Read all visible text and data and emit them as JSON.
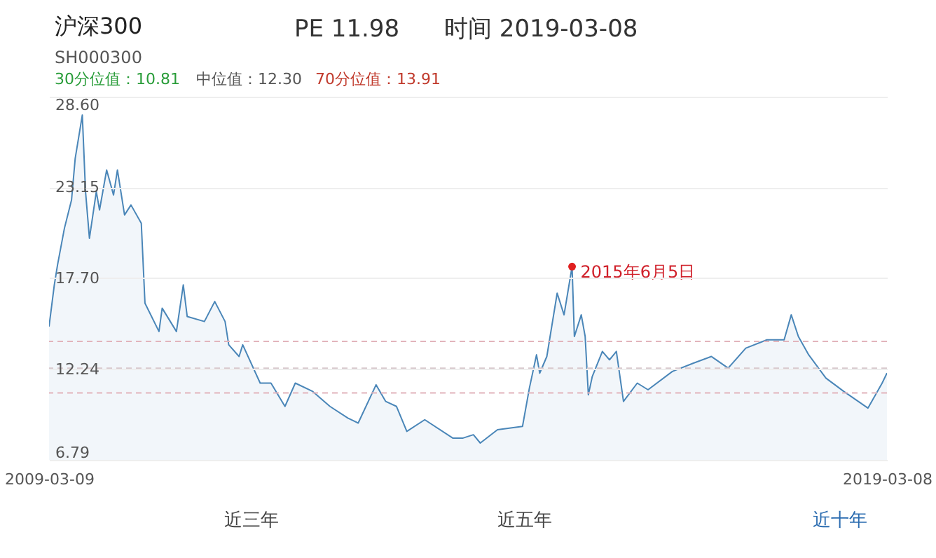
{
  "chart_data": {
    "type": "area",
    "title": "沪深300",
    "subtitle": "SH000300",
    "x": [
      "2009-03-09",
      "2009-04-01",
      "2009-04-15",
      "2009-05-15",
      "2009-06-15",
      "2009-07-01",
      "2009-08-01",
      "2009-08-15",
      "2009-09-01",
      "2009-10-01",
      "2009-10-15",
      "2009-11-15",
      "2009-12-15",
      "2010-01-01",
      "2010-02-01",
      "2010-03-01",
      "2010-04-15",
      "2010-05-01",
      "2010-07-01",
      "2010-07-15",
      "2010-09-15",
      "2010-10-15",
      "2010-11-01",
      "2011-01-15",
      "2011-03-01",
      "2011-04-15",
      "2011-05-01",
      "2011-06-15",
      "2011-07-01",
      "2011-09-15",
      "2011-11-01",
      "2012-01-01",
      "2012-02-15",
      "2012-05-01",
      "2012-07-15",
      "2012-10-01",
      "2012-11-15",
      "2013-02-01",
      "2013-03-15",
      "2013-05-01",
      "2013-06-15",
      "2013-09-01",
      "2014-01-01",
      "2014-02-15",
      "2014-04-01",
      "2014-05-01",
      "2014-07-15",
      "2014-11-01",
      "2014-12-01",
      "2015-01-01",
      "2015-01-15",
      "2015-02-15",
      "2015-04-01",
      "2015-05-01",
      "2015-06-05",
      "2015-06-15",
      "2015-07-15",
      "2015-08-01",
      "2015-08-15",
      "2015-09-01",
      "2015-10-15",
      "2015-11-15",
      "2015-12-15",
      "2016-01-15",
      "2016-03-15",
      "2016-05-01",
      "2016-08-15",
      "2016-11-15",
      "2017-02-01",
      "2017-04-15",
      "2017-07-01",
      "2017-10-01",
      "2017-12-15",
      "2018-01-15",
      "2018-02-15",
      "2018-04-01",
      "2018-06-15",
      "2018-09-01",
      "2018-12-15",
      "2019-02-15",
      "2019-03-08"
    ],
    "series": [
      {
        "color": "#4a86b8",
        "values": [
          14.8,
          17.3,
          18.5,
          20.7,
          22.4,
          24.9,
          27.5,
          22.9,
          20.1,
          22.9,
          21.8,
          24.2,
          22.7,
          24.2,
          21.5,
          22.1,
          21.0,
          16.2,
          14.5,
          15.9,
          14.5,
          17.3,
          15.4,
          15.1,
          16.3,
          15.1,
          13.7,
          13.0,
          13.7,
          11.4,
          11.4,
          10.0,
          11.4,
          10.9,
          10.0,
          9.3,
          9.0,
          11.3,
          10.3,
          10.0,
          8.5,
          9.2,
          8.1,
          8.1,
          8.3,
          7.8,
          8.6,
          8.8,
          11.1,
          13.1,
          12.0,
          13.0,
          16.8,
          15.5,
          18.4,
          14.2,
          15.5,
          14.2,
          10.7,
          11.8,
          13.3,
          12.8,
          13.3,
          10.3,
          11.4,
          11.0,
          12.1,
          12.6,
          13.0,
          12.3,
          13.5,
          14.0,
          14.0,
          15.5,
          14.2,
          13.1,
          11.7,
          10.9,
          9.9,
          11.4,
          12.0
        ]
      }
    ],
    "xlim": [
      "2009-03-09",
      "2019-03-08"
    ],
    "xticks": [
      "2009-03-09",
      "2019-03-08"
    ],
    "ylim": [
      6.79,
      28.6
    ],
    "yticks": [
      6.79,
      12.24,
      {
        "value": 17.7,
        "label": "17.70"
      },
      23.15,
      {
        "value": 28.6,
        "label": "28.60"
      }
    ],
    "grid": "y",
    "ref_lines": [
      {
        "axis": "y",
        "value": 13.91,
        "color": "#e2b4bc",
        "line_style": "dashed"
      },
      {
        "axis": "y",
        "value": 12.3,
        "color": "#d8c8cc",
        "line_style": "dashed"
      },
      {
        "axis": "y",
        "value": 10.81,
        "color": "#e2b4bc",
        "line_style": "dashed"
      }
    ],
    "annotations": [
      "PE 11.98",
      "时间 2019-03-08",
      "30分位值：10.81",
      "中位值：12.30",
      "70分位值：13.91",
      {
        "text": "2015年6月5日",
        "x": "2015-06-05",
        "y": 18.4
      },
      "近三年",
      "近五年",
      "近十年"
    ]
  }
}
